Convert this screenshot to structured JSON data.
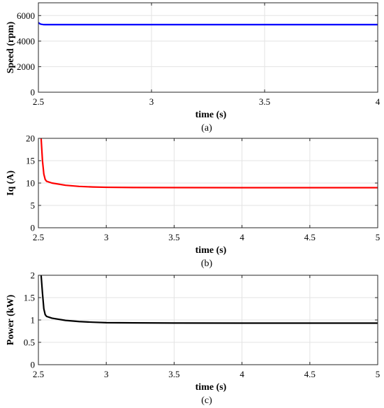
{
  "chart_data": [
    {
      "type": "line",
      "caption": "(a)",
      "xlabel": "time (s)",
      "ylabel": "Speed (rpm)",
      "xlim": [
        2.5,
        4
      ],
      "ylim": [
        0,
        7000
      ],
      "xticks": [
        2.5,
        3,
        3.5,
        4
      ],
      "xtick_labels": [
        "2.5",
        "3",
        "3.5",
        "4"
      ],
      "yticks": [
        0,
        2000,
        4000,
        6000
      ],
      "ytick_labels": [
        "0",
        "2000",
        "4000",
        "6000"
      ],
      "grid": true,
      "series": [
        {
          "color": "#0000ff",
          "x": [
            2.5,
            2.505,
            2.51,
            2.52,
            2.53,
            2.55,
            2.6,
            3,
            3.5,
            4
          ],
          "y": [
            5450,
            5380,
            5330,
            5300,
            5290,
            5290,
            5290,
            5290,
            5290,
            5290
          ]
        }
      ]
    },
    {
      "type": "line",
      "caption": "(b)",
      "xlabel": "time (s)",
      "ylabel": "Iq (A)",
      "xlim": [
        2.5,
        5
      ],
      "ylim": [
        0,
        20
      ],
      "xticks": [
        2.5,
        3,
        3.5,
        4,
        4.5,
        5
      ],
      "xtick_labels": [
        "2.5",
        "3",
        "3.5",
        "4",
        "4.5",
        "5"
      ],
      "yticks": [
        0,
        5,
        10,
        15,
        20
      ],
      "ytick_labels": [
        "0",
        "5",
        "10",
        "15",
        "20"
      ],
      "grid": true,
      "series": [
        {
          "color": "#ff0000",
          "x": [
            2.52,
            2.53,
            2.54,
            2.55,
            2.56,
            2.6,
            2.7,
            2.8,
            2.9,
            3.0,
            3.2,
            3.5,
            4.0,
            4.5,
            5.0
          ],
          "y": [
            20,
            15,
            12,
            10.8,
            10.4,
            10.0,
            9.5,
            9.25,
            9.12,
            9.05,
            9.0,
            8.98,
            8.97,
            8.97,
            8.97
          ]
        }
      ]
    },
    {
      "type": "line",
      "caption": "(c)",
      "xlabel": "time (s)",
      "ylabel": "Power (kW)",
      "xlim": [
        2.5,
        5
      ],
      "ylim": [
        0,
        2
      ],
      "xticks": [
        2.5,
        3,
        3.5,
        4,
        4.5,
        5
      ],
      "xtick_labels": [
        "2.5",
        "3",
        "3.5",
        "4",
        "4.5",
        "5"
      ],
      "yticks": [
        0,
        0.5,
        1,
        1.5,
        2
      ],
      "ytick_labels": [
        "0",
        "0.5",
        "1",
        "1.5",
        "2"
      ],
      "grid": true,
      "series": [
        {
          "color": "#000000",
          "x": [
            2.52,
            2.53,
            2.54,
            2.55,
            2.56,
            2.6,
            2.7,
            2.8,
            2.9,
            3.0,
            3.2,
            3.5,
            4.0,
            4.5,
            5.0
          ],
          "y": [
            2.0,
            1.6,
            1.25,
            1.12,
            1.08,
            1.04,
            0.99,
            0.965,
            0.95,
            0.94,
            0.935,
            0.932,
            0.93,
            0.93,
            0.93
          ]
        }
      ]
    }
  ]
}
